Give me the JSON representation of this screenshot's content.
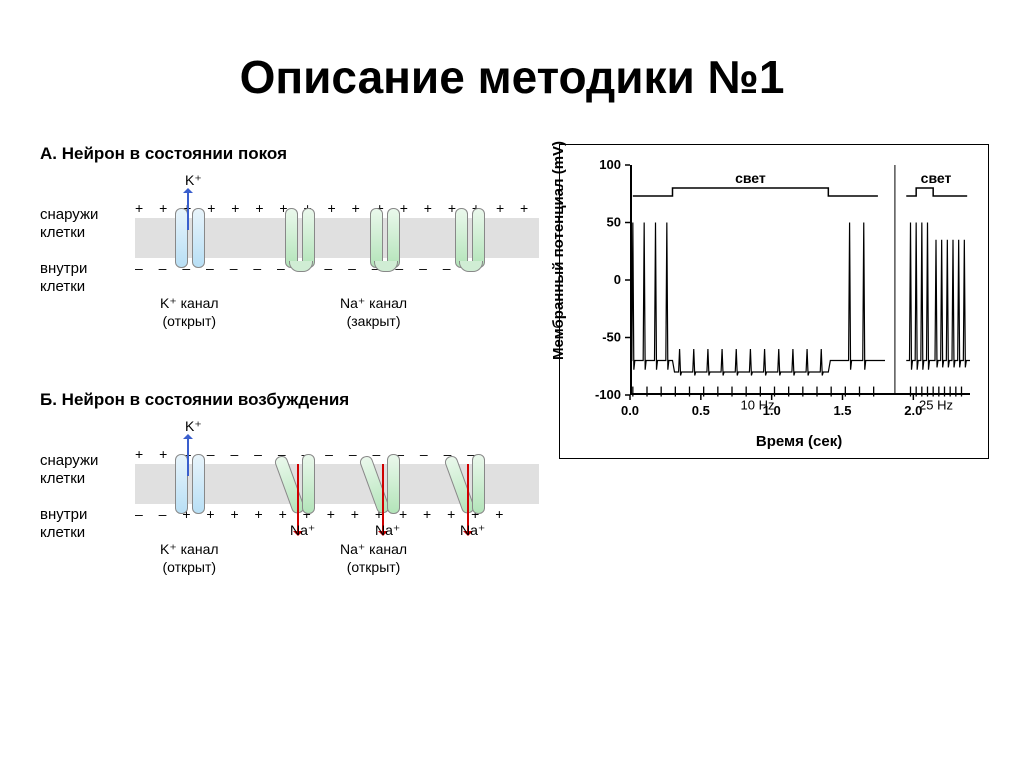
{
  "title": "Описание методики №1",
  "panelA": {
    "heading": "А. Нейрон в состоянии покоя",
    "outside_label_1": "снаружи",
    "outside_label_2": "клетки",
    "inside_label_1": "внутри",
    "inside_label_2": "клетки",
    "k_ion": "K⁺",
    "k_channel_1": "K⁺ канал",
    "k_channel_2": "(открыт)",
    "na_channel_1": "Na⁺ канал",
    "na_channel_2": "(закрыт)",
    "sign_top": "+ + + + + + + + + + + + + + + + + +",
    "sign_bot": "–  –  –  –  –  –  –  –  –  –  –  –  –  –  –",
    "membrane_color": "#e0e0e0",
    "k_color": "#b8dff5",
    "na_color": "#b3e4b9",
    "arrow_up_color": "#3a5fcd"
  },
  "panelB": {
    "heading": "Б. Нейрон в состоянии возбуждения",
    "outside_label_1": "снаружи",
    "outside_label_2": "клетки",
    "inside_label_1": "внутри",
    "inside_label_2": "клетки",
    "k_ion": "K⁺",
    "na_ion": "Na⁺",
    "k_channel_1": "K⁺ канал",
    "k_channel_2": "(открыт)",
    "na_channel_1": "Na⁺ канал",
    "na_channel_2": "(открыт)",
    "sign_top": "+ +  –  –  –   –  –   –  –  –   –  –   –  –  –",
    "sign_bot": "–  –  + + + + + + + + + + + + + +",
    "arrow_down_color": "#d00000"
  },
  "chart": {
    "type": "line",
    "ylabel": "Мембранный потенциал (mV)",
    "xlabel": "Время (сек)",
    "light_label": "свет",
    "freq10": "10 Hz",
    "freq25": "25 Hz",
    "ylim": [
      -100,
      100
    ],
    "yticks": [
      -100,
      -50,
      0,
      50,
      100
    ],
    "xlim": [
      0.0,
      2.4
    ],
    "xticks": [
      0.0,
      0.5,
      1.0,
      1.5,
      2.0
    ],
    "baseline_mV": -70,
    "baseline_during_light_mV": -80,
    "spike_peak_mV": 50,
    "spike_dip_mV": -60,
    "spikes10_before_light": [
      0.02,
      0.1,
      0.18,
      0.26
    ],
    "light10_on": 0.3,
    "light10_off": 1.4,
    "spikes10_during": [
      0.35,
      0.45,
      0.55,
      0.65,
      0.75,
      0.85,
      0.95,
      1.05,
      1.15,
      1.25,
      1.35
    ],
    "spikes10_after": [
      1.55,
      1.65
    ],
    "spikes25_before": [
      1.98,
      2.02,
      2.06,
      2.1
    ],
    "light25_on": 2.02,
    "light25_off": 2.14,
    "spikes25_after": [
      2.16,
      2.2,
      2.24,
      2.28,
      2.32,
      2.36
    ],
    "stim_ticks10": [
      0.02,
      0.12,
      0.22,
      0.32,
      0.42,
      0.52,
      0.62,
      0.72,
      0.82,
      0.92,
      1.02,
      1.12,
      1.22,
      1.32,
      1.42,
      1.52,
      1.62,
      1.72
    ],
    "stim_ticks25": [
      1.98,
      2.02,
      2.06,
      2.1,
      2.14,
      2.18,
      2.22,
      2.26,
      2.3,
      2.34
    ],
    "line_color": "#000000",
    "line_width": 1.5,
    "axis_fontsize": 13,
    "label_fontsize": 15,
    "background_color": "#ffffff",
    "border_color": "#000000"
  }
}
